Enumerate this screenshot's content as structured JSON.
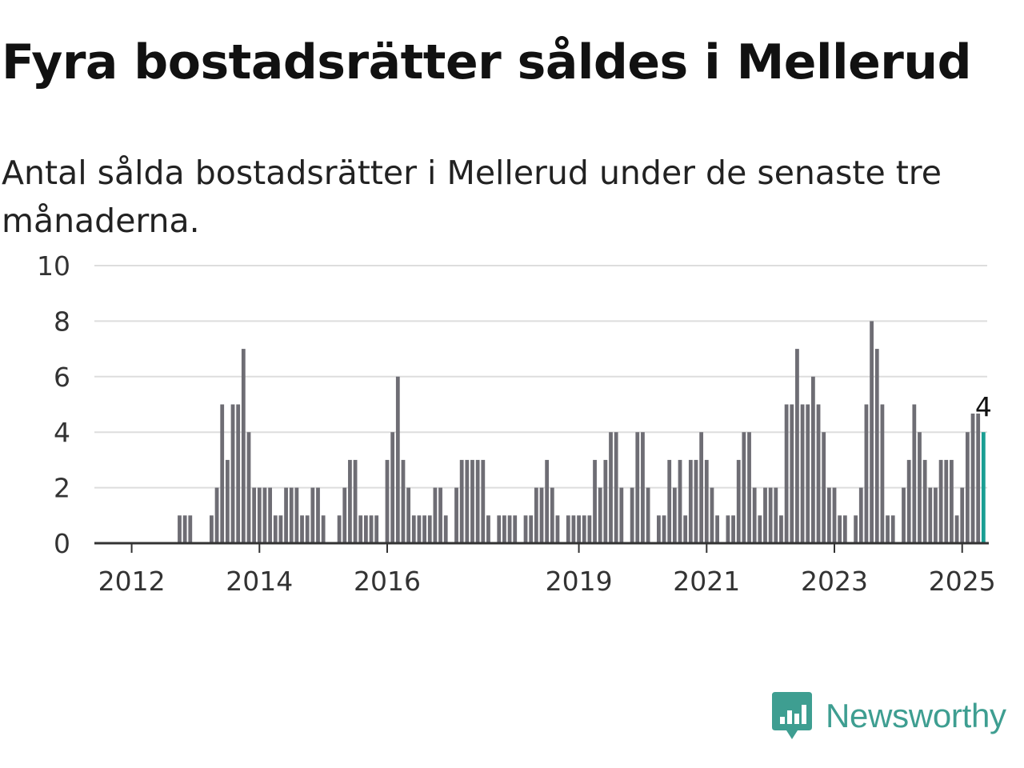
{
  "title": "Fyra bostadsrätter såldes i Mellerud",
  "subtitle": "Antal sålda bostadsrätter i Mellerud under de senaste tre månaderna.",
  "brand": {
    "name": "Newsworthy",
    "icon": "newsworthy-logo-icon",
    "color": "#3e9e91"
  },
  "colors": {
    "bar": "#6e6d74",
    "highlight": "#1a9e93",
    "grid": "#dddddd",
    "axis": "#333333"
  },
  "chart_data": {
    "type": "bar",
    "title": "",
    "xlabel": "",
    "ylabel": "",
    "ylim": [
      0,
      10
    ],
    "yticks": [
      0,
      2,
      4,
      6,
      8,
      10
    ],
    "xlim": [
      "2011-06",
      "2025-06"
    ],
    "xticks": [
      {
        "date": "2012-01",
        "label": "2012"
      },
      {
        "date": "2014-01",
        "label": "2014"
      },
      {
        "date": "2016-01",
        "label": "2016"
      },
      {
        "date": "2019-01",
        "label": "2019"
      },
      {
        "date": "2021-01",
        "label": "2021"
      },
      {
        "date": "2023-01",
        "label": "2023"
      },
      {
        "date": "2025-01",
        "label": "2025"
      }
    ],
    "grid": true,
    "legend": "none",
    "series": [
      {
        "values": [
          {
            "x": "2012-10",
            "y": 1
          },
          {
            "x": "2012-11",
            "y": 1
          },
          {
            "x": "2012-12",
            "y": 1
          },
          {
            "x": "2013-04",
            "y": 1
          },
          {
            "x": "2013-05",
            "y": 2
          },
          {
            "x": "2013-06",
            "y": 5
          },
          {
            "x": "2013-07",
            "y": 3
          },
          {
            "x": "2013-08",
            "y": 5
          },
          {
            "x": "2013-09",
            "y": 5
          },
          {
            "x": "2013-10",
            "y": 7
          },
          {
            "x": "2013-11",
            "y": 4
          },
          {
            "x": "2013-12",
            "y": 2
          },
          {
            "x": "2014-01",
            "y": 2
          },
          {
            "x": "2014-02",
            "y": 2
          },
          {
            "x": "2014-03",
            "y": 2
          },
          {
            "x": "2014-04",
            "y": 1
          },
          {
            "x": "2014-05",
            "y": 1
          },
          {
            "x": "2014-06",
            "y": 2
          },
          {
            "x": "2014-07",
            "y": 2
          },
          {
            "x": "2014-08",
            "y": 2
          },
          {
            "x": "2014-09",
            "y": 1
          },
          {
            "x": "2014-10",
            "y": 1
          },
          {
            "x": "2014-11",
            "y": 2
          },
          {
            "x": "2014-12",
            "y": 2
          },
          {
            "x": "2015-01",
            "y": 1
          },
          {
            "x": "2015-04",
            "y": 1
          },
          {
            "x": "2015-05",
            "y": 2
          },
          {
            "x": "2015-06",
            "y": 3
          },
          {
            "x": "2015-07",
            "y": 3
          },
          {
            "x": "2015-08",
            "y": 1
          },
          {
            "x": "2015-09",
            "y": 1
          },
          {
            "x": "2015-10",
            "y": 1
          },
          {
            "x": "2015-11",
            "y": 1
          },
          {
            "x": "2016-01",
            "y": 3
          },
          {
            "x": "2016-02",
            "y": 4
          },
          {
            "x": "2016-03",
            "y": 6
          },
          {
            "x": "2016-04",
            "y": 3
          },
          {
            "x": "2016-05",
            "y": 2
          },
          {
            "x": "2016-06",
            "y": 1
          },
          {
            "x": "2016-07",
            "y": 1
          },
          {
            "x": "2016-08",
            "y": 1
          },
          {
            "x": "2016-09",
            "y": 1
          },
          {
            "x": "2016-10",
            "y": 2
          },
          {
            "x": "2016-11",
            "y": 2
          },
          {
            "x": "2016-12",
            "y": 1
          },
          {
            "x": "2017-02",
            "y": 2
          },
          {
            "x": "2017-03",
            "y": 3
          },
          {
            "x": "2017-04",
            "y": 3
          },
          {
            "x": "2017-05",
            "y": 3
          },
          {
            "x": "2017-06",
            "y": 3
          },
          {
            "x": "2017-07",
            "y": 3
          },
          {
            "x": "2017-08",
            "y": 1
          },
          {
            "x": "2017-10",
            "y": 1
          },
          {
            "x": "2017-11",
            "y": 1
          },
          {
            "x": "2017-12",
            "y": 1
          },
          {
            "x": "2018-01",
            "y": 1
          },
          {
            "x": "2018-03",
            "y": 1
          },
          {
            "x": "2018-04",
            "y": 1
          },
          {
            "x": "2018-05",
            "y": 2
          },
          {
            "x": "2018-06",
            "y": 2
          },
          {
            "x": "2018-07",
            "y": 3
          },
          {
            "x": "2018-08",
            "y": 2
          },
          {
            "x": "2018-09",
            "y": 1
          },
          {
            "x": "2018-11",
            "y": 1
          },
          {
            "x": "2018-12",
            "y": 1
          },
          {
            "x": "2019-01",
            "y": 1
          },
          {
            "x": "2019-02",
            "y": 1
          },
          {
            "x": "2019-03",
            "y": 1
          },
          {
            "x": "2019-04",
            "y": 3
          },
          {
            "x": "2019-05",
            "y": 2
          },
          {
            "x": "2019-06",
            "y": 3
          },
          {
            "x": "2019-07",
            "y": 4
          },
          {
            "x": "2019-08",
            "y": 4
          },
          {
            "x": "2019-09",
            "y": 2
          },
          {
            "x": "2019-11",
            "y": 2
          },
          {
            "x": "2019-12",
            "y": 4
          },
          {
            "x": "2020-01",
            "y": 4
          },
          {
            "x": "2020-02",
            "y": 2
          },
          {
            "x": "2020-04",
            "y": 1
          },
          {
            "x": "2020-05",
            "y": 1
          },
          {
            "x": "2020-06",
            "y": 3
          },
          {
            "x": "2020-07",
            "y": 2
          },
          {
            "x": "2020-08",
            "y": 3
          },
          {
            "x": "2020-09",
            "y": 1
          },
          {
            "x": "2020-10",
            "y": 3
          },
          {
            "x": "2020-11",
            "y": 3
          },
          {
            "x": "2020-12",
            "y": 4
          },
          {
            "x": "2021-01",
            "y": 3
          },
          {
            "x": "2021-02",
            "y": 2
          },
          {
            "x": "2021-03",
            "y": 1
          },
          {
            "x": "2021-05",
            "y": 1
          },
          {
            "x": "2021-06",
            "y": 1
          },
          {
            "x": "2021-07",
            "y": 3
          },
          {
            "x": "2021-08",
            "y": 4
          },
          {
            "x": "2021-09",
            "y": 4
          },
          {
            "x": "2021-10",
            "y": 2
          },
          {
            "x": "2021-11",
            "y": 1
          },
          {
            "x": "2021-12",
            "y": 2
          },
          {
            "x": "2022-01",
            "y": 2
          },
          {
            "x": "2022-02",
            "y": 2
          },
          {
            "x": "2022-03",
            "y": 1
          },
          {
            "x": "2022-04",
            "y": 5
          },
          {
            "x": "2022-05",
            "y": 5
          },
          {
            "x": "2022-06",
            "y": 7
          },
          {
            "x": "2022-07",
            "y": 5
          },
          {
            "x": "2022-08",
            "y": 5
          },
          {
            "x": "2022-09",
            "y": 6
          },
          {
            "x": "2022-10",
            "y": 5
          },
          {
            "x": "2022-11",
            "y": 4
          },
          {
            "x": "2022-12",
            "y": 2
          },
          {
            "x": "2023-01",
            "y": 2
          },
          {
            "x": "2023-02",
            "y": 1
          },
          {
            "x": "2023-03",
            "y": 1
          },
          {
            "x": "2023-05",
            "y": 1
          },
          {
            "x": "2023-06",
            "y": 2
          },
          {
            "x": "2023-07",
            "y": 5
          },
          {
            "x": "2023-08",
            "y": 8
          },
          {
            "x": "2023-09",
            "y": 7
          },
          {
            "x": "2023-10",
            "y": 5
          },
          {
            "x": "2023-11",
            "y": 1
          },
          {
            "x": "2023-12",
            "y": 1
          },
          {
            "x": "2024-02",
            "y": 2
          },
          {
            "x": "2024-03",
            "y": 3
          },
          {
            "x": "2024-04",
            "y": 5
          },
          {
            "x": "2024-05",
            "y": 4
          },
          {
            "x": "2024-06",
            "y": 3
          },
          {
            "x": "2024-07",
            "y": 2
          },
          {
            "x": "2024-08",
            "y": 2
          },
          {
            "x": "2024-09",
            "y": 3
          },
          {
            "x": "2024-10",
            "y": 3
          },
          {
            "x": "2024-11",
            "y": 3
          },
          {
            "x": "2024-12",
            "y": 1
          },
          {
            "x": "2025-01",
            "y": 2
          },
          {
            "x": "2025-02",
            "y": 4
          },
          {
            "x": "2025-03",
            "y": 4.67
          },
          {
            "x": "2025-04",
            "y": 4.67
          },
          {
            "x": "2025-05",
            "y": 4,
            "highlight": true
          }
        ]
      }
    ],
    "annotations": [
      {
        "x": "2025-05",
        "y": 4,
        "text": "4"
      }
    ]
  }
}
